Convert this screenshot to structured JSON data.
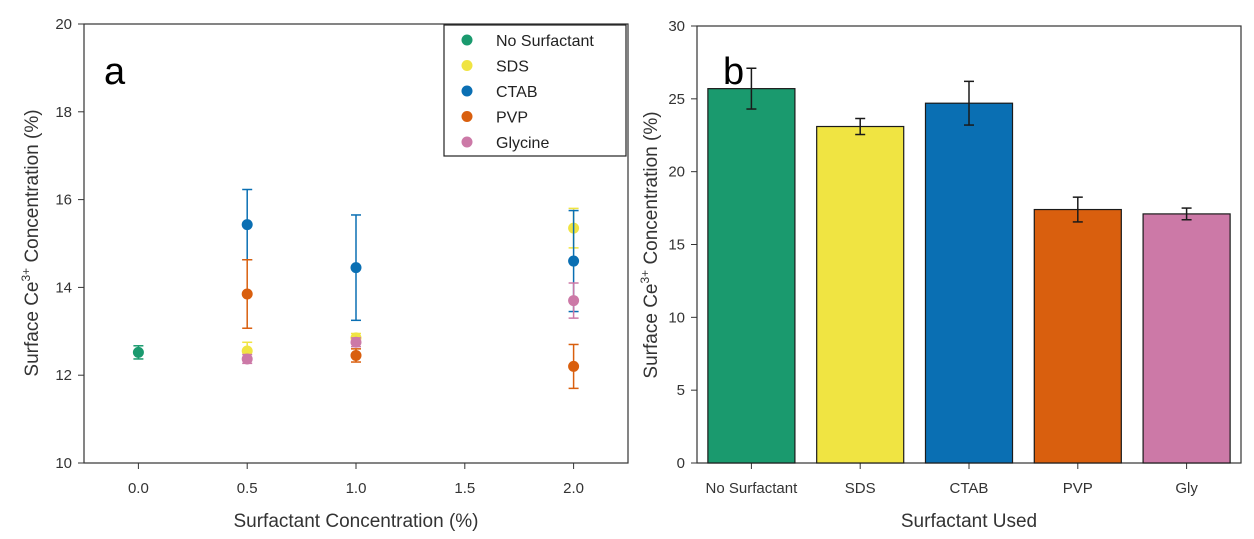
{
  "colors": {
    "No Surfactant": "#1a9a6e",
    "SDS": "#f0e442",
    "CTAB": "#0a6fb3",
    "PVP": "#d95f0e",
    "Glycine": "#cc79a7",
    "axis": "#333333"
  },
  "chart_data": [
    {
      "type": "scatter",
      "panel_label": "a",
      "xlabel": "Surfactant Concentration (%)",
      "ylabel_main": "Surface Ce",
      "ylabel_sup": "3+",
      "ylabel_rest": " Concentration (%)",
      "x_ticks": [
        "0.0",
        "0.5",
        "1.0",
        "1.5",
        "2.0"
      ],
      "y_ticks": [
        "10",
        "12",
        "14",
        "16",
        "18",
        "20"
      ],
      "xlim": [
        -0.25,
        2.25
      ],
      "ylim": [
        10,
        20
      ],
      "legend_position": "top-right",
      "series": [
        {
          "name": "No Surfactant",
          "x": [
            0.0
          ],
          "y": [
            12.52
          ],
          "err": [
            0.15
          ]
        },
        {
          "name": "SDS",
          "x": [
            0.5,
            1.0,
            2.0
          ],
          "y": [
            12.55,
            12.85,
            15.35
          ],
          "err": [
            0.2,
            0.1,
            0.45
          ]
        },
        {
          "name": "CTAB",
          "x": [
            0.5,
            1.0,
            2.0
          ],
          "y": [
            15.43,
            14.45,
            14.6
          ],
          "err": [
            0.8,
            1.2,
            1.15
          ]
        },
        {
          "name": "PVP",
          "x": [
            0.5,
            1.0,
            2.0
          ],
          "y": [
            13.85,
            12.45,
            12.2
          ],
          "err": [
            0.78,
            0.15,
            0.5
          ]
        },
        {
          "name": "Glycine",
          "x": [
            0.5,
            1.0,
            2.0
          ],
          "y": [
            12.37,
            12.75,
            13.7
          ],
          "err": [
            0.1,
            0.1,
            0.4
          ]
        }
      ]
    },
    {
      "type": "bar",
      "panel_label": "b",
      "xlabel": "Surfactant Used",
      "ylabel_main": "Surface Ce",
      "ylabel_sup": "3+",
      "ylabel_rest": " Concentration (%)",
      "categories": [
        "No Surfactant",
        "SDS",
        "CTAB",
        "PVP",
        "Gly"
      ],
      "values": [
        25.7,
        23.1,
        24.7,
        17.4,
        17.1
      ],
      "err": [
        1.4,
        0.55,
        1.5,
        0.85,
        0.4
      ],
      "bar_colors": [
        "#1a9a6e",
        "#f0e442",
        "#0a6fb3",
        "#d95f0e",
        "#cc79a7"
      ],
      "y_ticks": [
        "0",
        "5",
        "10",
        "15",
        "20",
        "25",
        "30"
      ],
      "ylim": [
        0,
        30
      ]
    }
  ]
}
